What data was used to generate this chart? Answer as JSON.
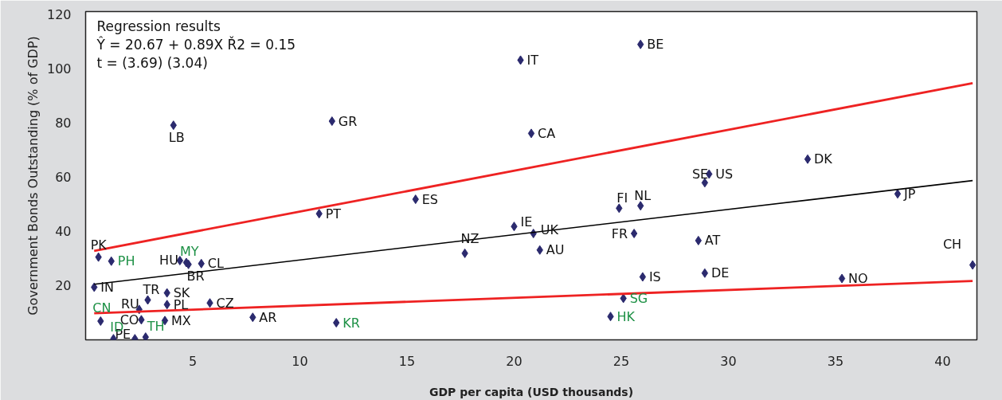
{
  "chart_data": {
    "type": "scatter",
    "xlabel": "GDP per capita (USD thousands)",
    "ylabel": "Government Bonds Outstanding (% of GDP)",
    "xlim": [
      0,
      41.6
    ],
    "ylim": [
      0,
      121
    ],
    "xticks": [
      5,
      10,
      15,
      20,
      25,
      30,
      35,
      40
    ],
    "yticks": [
      20,
      40,
      60,
      80,
      100,
      120
    ],
    "grid": false,
    "series": [
      {
        "color": "#2b2a6e",
        "marker": "diamond",
        "x": [
          25.9,
          20.3,
          11.5,
          4.1,
          20.8,
          33.7,
          29.1,
          28.9,
          15.4,
          37.9,
          24.9,
          25.9,
          10.9,
          20.0,
          20.9,
          25.6,
          28.6,
          21.2,
          17.7,
          41.4,
          0.6,
          4.4,
          4.8,
          5.4,
          0.4,
          2.9,
          3.8,
          3.8,
          5.8,
          2.5,
          2.6,
          3.7,
          7.8,
          1.3,
          26.0,
          28.9,
          35.3
        ],
        "values": [
          108.9,
          103.1,
          80.6,
          79.1,
          76.1,
          66.6,
          61.1,
          57.9,
          51.8,
          53.8,
          48.5,
          49.4,
          46.5,
          41.8,
          39.2,
          39.2,
          36.6,
          33.1,
          31.9,
          27.6,
          30.5,
          29.2,
          27.8,
          28.1,
          19.4,
          14.7,
          17.3,
          13.0,
          13.6,
          11.2,
          7.4,
          7.1,
          8.3,
          0.4,
          23.2,
          24.6,
          22.6
        ],
        "value_labels": [
          "BE",
          "IT",
          "GR",
          "LB",
          "CA",
          "DK",
          "US",
          "SE",
          "ES",
          "JP",
          "FI",
          "NL",
          "PT",
          "IE",
          "UK",
          "FR",
          "AT",
          "AU",
          "NZ",
          "CH",
          "PK",
          "HU",
          "BR",
          "CL",
          "IN",
          "TR",
          "SK",
          "PL",
          "CZ",
          "RU",
          "CO",
          "MX",
          "AR",
          "PE",
          "IS",
          "DE",
          "NO"
        ]
      },
      {
        "color": "#2b2a6e",
        "marker": "diamond",
        "x": [
          1.2,
          4.7,
          0.7,
          11.7,
          2.3,
          2.8,
          24.5,
          25.1
        ],
        "values": [
          29.0,
          28.5,
          6.9,
          6.3,
          0.4,
          1.0,
          8.6,
          15.3
        ],
        "value_labels": [
          "PH",
          "MY",
          "CN",
          "KR",
          "ID",
          "TH",
          "HK",
          "SG"
        ]
      },
      {
        "type": "line",
        "color": "#000000",
        "x": [
          0.4,
          41.4
        ],
        "values": [
          20.5,
          58.7
        ]
      },
      {
        "type": "line",
        "color": "#ee2222",
        "x": [
          0.4,
          41.4
        ],
        "values": [
          32.8,
          94.6
        ]
      },
      {
        "type": "line",
        "color": "#ee2222",
        "x": [
          0.4,
          41.4
        ],
        "values": [
          9.8,
          21.7
        ]
      }
    ],
    "annotations": [
      "Regression results",
      "Ŷ = 20.67 + 0.89X Ř2 = 0.15",
      "t = (3.69) (3.04)"
    ]
  }
}
